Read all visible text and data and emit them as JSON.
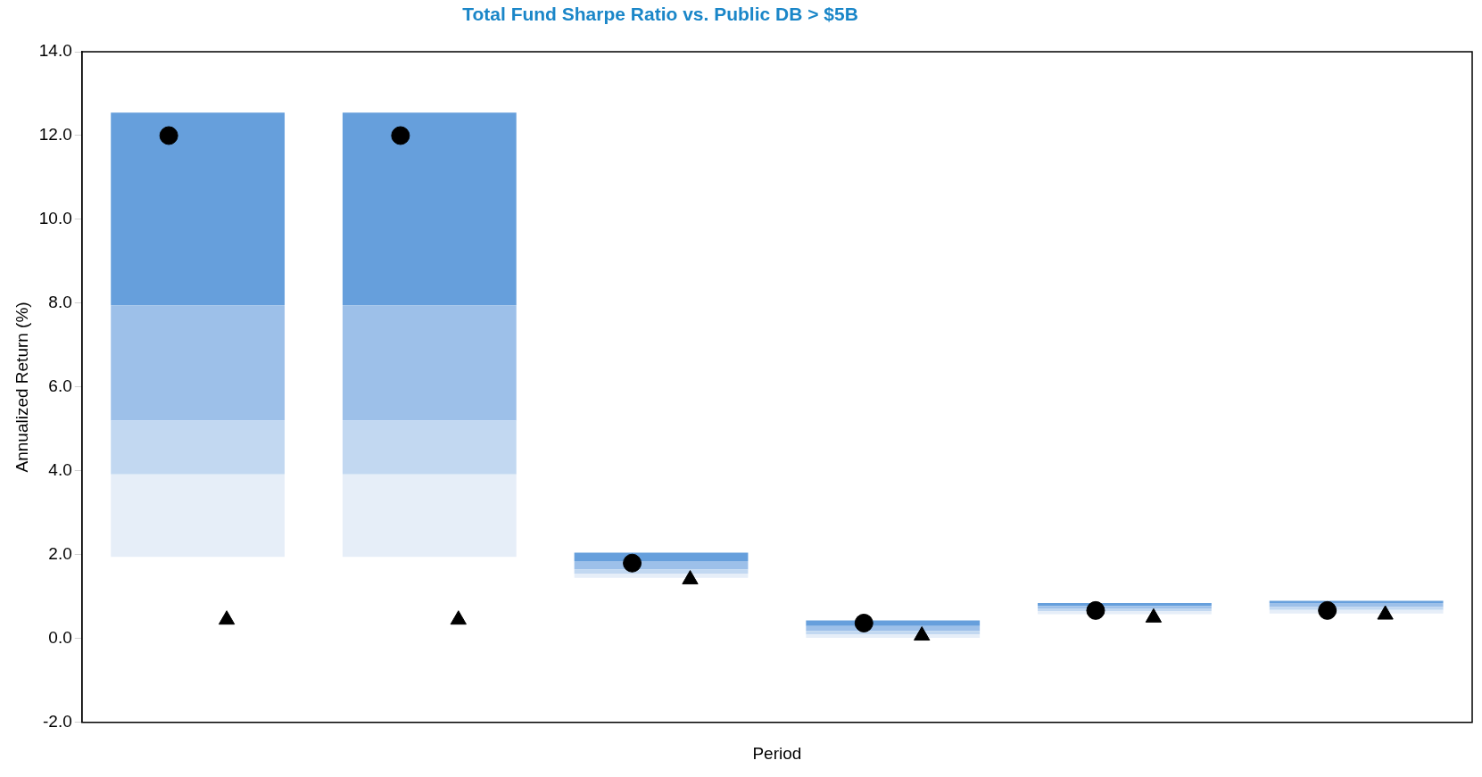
{
  "chart_data": {
    "type": "bar",
    "title": "Total Fund Sharpe Ratio vs. Public DB > $5B",
    "xlabel": "Period",
    "ylabel": "Annualized Return (%)",
    "categories": [
      null,
      null,
      null,
      null,
      null,
      null
    ],
    "series": [
      {
        "color": "#e6eef8",
        "base": [
          1.95,
          1.95,
          1.45,
          0.02,
          0.58,
          0.6
        ],
        "values": [
          1.97,
          1.97,
          0.1,
          0.08,
          0.07,
          0.08
        ]
      },
      {
        "color": "#c2d8f1",
        "base": [
          3.92,
          3.92,
          1.55,
          0.1,
          0.65,
          0.68
        ],
        "values": [
          1.28,
          1.28,
          0.1,
          0.08,
          0.07,
          0.07
        ]
      },
      {
        "color": "#9dc0e9",
        "base": [
          5.2,
          5.2,
          1.65,
          0.18,
          0.72,
          0.75
        ],
        "values": [
          2.75,
          2.75,
          0.2,
          0.12,
          0.06,
          0.1
        ]
      },
      {
        "color": "#669fdc",
        "base": [
          7.95,
          7.95,
          1.85,
          0.3,
          0.78,
          0.85
        ],
        "values": [
          4.6,
          4.6,
          0.2,
          0.13,
          0.07,
          0.05
        ]
      },
      {
        "type": "scatter",
        "marker": "circle",
        "color": "#000000",
        "values": [
          12.0,
          12.0,
          1.8,
          0.37,
          0.67,
          0.67
        ]
      },
      {
        "type": "scatter",
        "marker": "triangle",
        "color": "#000000",
        "values": [
          0.45,
          0.45,
          1.41,
          0.07,
          0.5,
          0.57
        ]
      }
    ],
    "ylim": [
      -2,
      14
    ],
    "yticks": [
      {
        "value": -2,
        "label": "-2.0"
      },
      {
        "value": 0,
        "label": "0.0"
      },
      {
        "value": 2,
        "label": "2.0"
      },
      {
        "value": 4,
        "label": "4.0"
      },
      {
        "value": 6,
        "label": "6.0"
      },
      {
        "value": 8,
        "label": "8.0"
      },
      {
        "value": 10,
        "label": "10.0"
      },
      {
        "value": 12,
        "label": "12.0"
      },
      {
        "value": 14,
        "label": "14.0"
      }
    ],
    "grid": false,
    "legend": false
  }
}
